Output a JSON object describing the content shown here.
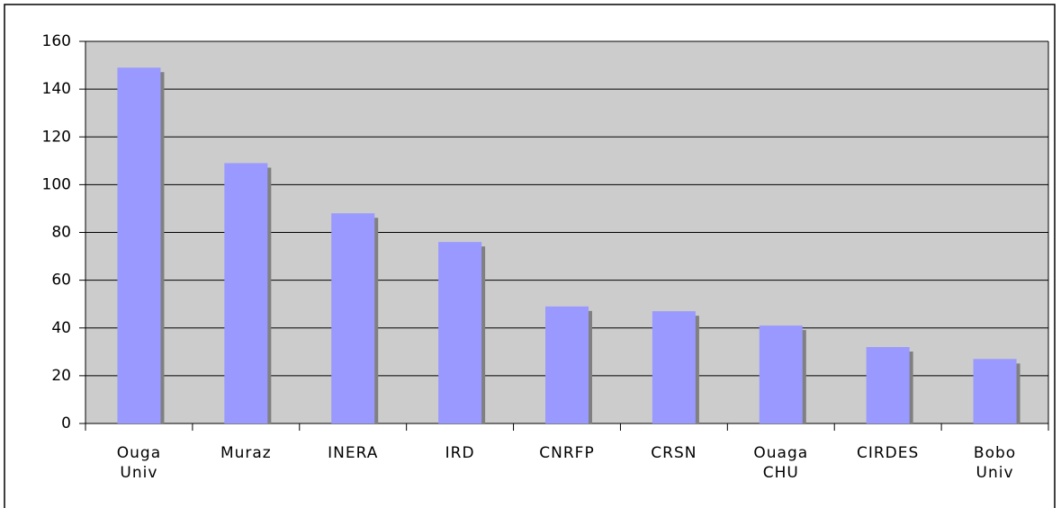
{
  "chart_data": {
    "type": "bar",
    "categories": [
      "Ouga Univ",
      "Muraz",
      "INERA",
      "IRD",
      "CNRFP",
      "CRSN",
      "Ouaga CHU",
      "CIRDES",
      "Bobo Univ"
    ],
    "values": [
      149,
      109,
      88,
      76,
      49,
      47,
      41,
      32,
      27
    ],
    "color": "#9999ff",
    "ylim": [
      0,
      160
    ],
    "yticks": [
      0,
      20,
      40,
      60,
      80,
      100,
      120,
      140,
      160
    ],
    "grid": true
  }
}
